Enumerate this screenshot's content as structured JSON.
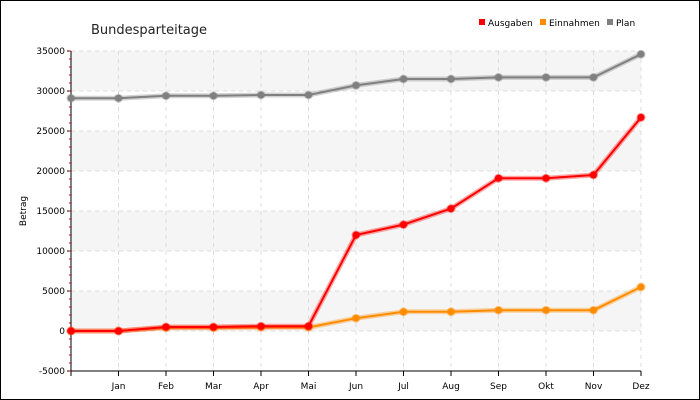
{
  "chart_data": {
    "type": "line",
    "title": "Bundesparteitage",
    "xlabel": "",
    "ylabel": "Betrag",
    "categories": [
      "",
      "Jan",
      "Feb",
      "Mar",
      "Apr",
      "Mai",
      "Jun",
      "Jul",
      "Aug",
      "Sep",
      "Okt",
      "Nov",
      "Dez"
    ],
    "ylim": [
      -5000,
      35000
    ],
    "yticks": [
      -5000,
      0,
      5000,
      10000,
      15000,
      20000,
      25000,
      30000,
      35000
    ],
    "grid": true,
    "legend_position": "top-right",
    "series": [
      {
        "name": "Ausgaben",
        "color": "#ff0000",
        "values": [
          0,
          0,
          500,
          500,
          600,
          600,
          12000,
          13300,
          15300,
          19100,
          19100,
          19500,
          26700
        ]
      },
      {
        "name": "Einnahmen",
        "color": "#ff8c00",
        "values": [
          0,
          0,
          400,
          400,
          450,
          450,
          1600,
          2400,
          2400,
          2600,
          2600,
          2600,
          5500
        ]
      },
      {
        "name": "Plan",
        "color": "#808080",
        "values": [
          29100,
          29100,
          29400,
          29400,
          29500,
          29500,
          30700,
          31500,
          31500,
          31700,
          31700,
          31700,
          34600
        ]
      }
    ]
  }
}
